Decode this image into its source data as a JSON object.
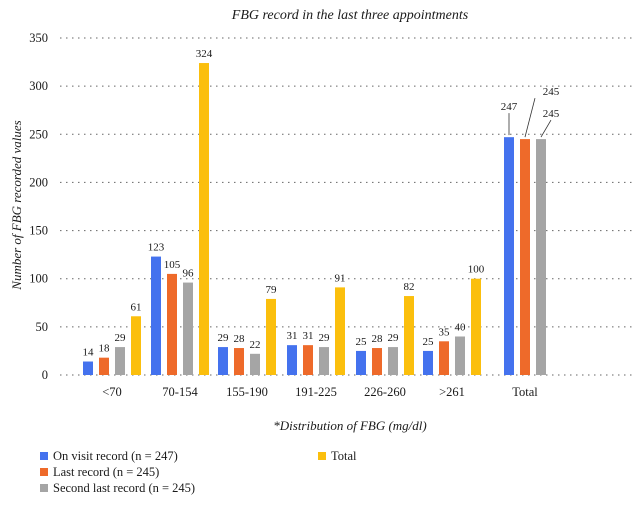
{
  "chart_data": {
    "type": "bar",
    "title": "FBG record in the last three appointments",
    "xlabel": "*Distribution of FBG (mg/dl)",
    "ylabel": "Number of FBG recorded values",
    "ylim": [
      0,
      350
    ],
    "yticks": [
      0,
      50,
      100,
      150,
      200,
      250,
      300,
      350
    ],
    "grid": "horizontal dotted",
    "legend_position": "bottom-left",
    "groups": [
      {
        "category": "<70",
        "series": [
          0,
          1,
          2,
          3
        ]
      },
      {
        "category": "70-154",
        "series": [
          0,
          1,
          2,
          3
        ]
      },
      {
        "category": "155-190",
        "series": [
          0,
          1,
          2,
          3
        ]
      },
      {
        "category": "191-225",
        "series": [
          0,
          1,
          2,
          3
        ]
      },
      {
        "category": "226-260",
        "series": [
          0,
          1,
          2,
          3
        ]
      },
      {
        "category": ">261",
        "series": [
          0,
          1,
          2,
          3
        ]
      },
      {
        "category": "Total",
        "series": [
          0,
          1,
          2
        ]
      }
    ],
    "series": [
      {
        "name": "On visit record (n = 247)",
        "color": "#4472ee",
        "values": [
          14,
          123,
          29,
          31,
          25,
          25,
          247
        ]
      },
      {
        "name": "Last record (n = 245)",
        "color": "#ee6a2a",
        "values": [
          18,
          105,
          28,
          31,
          28,
          35,
          245
        ]
      },
      {
        "name": "Second last record (n = 245)",
        "color": "#a5a5a5",
        "values": [
          29,
          96,
          22,
          29,
          29,
          40,
          245
        ]
      },
      {
        "name": "Total",
        "color": "#fbbf0d",
        "values": [
          61,
          324,
          79,
          91,
          82,
          100,
          null
        ]
      }
    ]
  }
}
